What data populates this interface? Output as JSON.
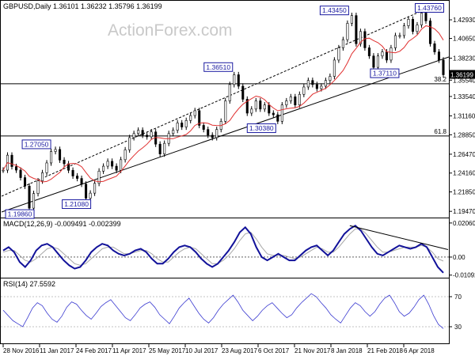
{
  "chart_data": {
    "type": "candlestick",
    "symbol_header": "GBPUSD,Daily  1.36101 1.36232 1.35796 1.36199",
    "watermark": "ActionForex.com",
    "price_axis": {
      "ticks": [
        "1.42930",
        "1.40650",
        "1.38230",
        "1.35540",
        "1.33540",
        "1.31160",
        "1.28850",
        "1.26470",
        "1.24160",
        "1.21850",
        "1.19470"
      ],
      "tick_values": [
        1.4293,
        1.4065,
        1.3823,
        1.3554,
        1.3354,
        1.3116,
        1.2885,
        1.2647,
        1.2416,
        1.2185,
        1.1947
      ],
      "current_price_label": "1.36199",
      "current_price": 1.36199,
      "range": [
        1.19,
        1.44
      ]
    },
    "date_axis_labels": [
      "28 Nov 2016",
      "11 Jan 2017",
      "24 Feb 2017",
      "11 Apr 2017",
      "25 May 2017",
      "10 Jul 2017",
      "23 Aug 2017",
      "6 Oct 2017",
      "21 Nov 2017",
      "8 Jan 2018",
      "21 Feb 2018",
      "6 Apr 2018"
    ],
    "price_series": [
      1.2452,
      1.2635,
      1.2495,
      1.2452,
      1.236,
      1.2256,
      1.1986,
      1.2165,
      1.232,
      1.242,
      1.254,
      1.268,
      1.2705,
      1.2575,
      1.253,
      1.245,
      1.238,
      1.235,
      1.228,
      1.2108,
      1.217,
      1.229,
      1.244,
      1.25,
      1.256,
      1.25,
      1.245,
      1.258,
      1.27,
      1.285,
      1.29,
      1.294,
      1.288,
      1.286,
      1.292,
      1.277,
      1.265,
      1.278,
      1.29,
      1.294,
      1.303,
      1.298,
      1.306,
      1.312,
      1.318,
      1.3,
      1.295,
      1.288,
      1.285,
      1.295,
      1.305,
      1.33,
      1.35,
      1.362,
      1.348,
      1.332,
      1.315,
      1.32,
      1.33,
      1.32,
      1.325,
      1.315,
      1.313,
      1.305,
      1.325,
      1.33,
      1.335,
      1.325,
      1.338,
      1.347,
      1.355,
      1.35,
      1.345,
      1.348,
      1.355,
      1.36,
      1.38,
      1.395,
      1.405,
      1.425,
      1.4345,
      1.4,
      1.415,
      1.395,
      1.385,
      1.3711,
      1.385,
      1.39,
      1.38,
      1.395,
      1.41,
      1.41,
      1.422,
      1.43,
      1.415,
      1.423,
      1.4376,
      1.428,
      1.4,
      1.39,
      1.38,
      1.362
    ],
    "annotations": [
      {
        "label": "1.43760",
        "value": 1.4376
      },
      {
        "label": "1.43450",
        "value": 1.4345
      },
      {
        "label": "1.37110",
        "value": 1.3711
      },
      {
        "label": "1.36510",
        "value": 1.3651
      },
      {
        "label": "1.30380",
        "value": 1.3038
      },
      {
        "label": "1.27050",
        "value": 1.2705
      },
      {
        "label": "1.21080",
        "value": 1.2108
      },
      {
        "label": "1.19860",
        "value": 1.1986
      }
    ],
    "fib_levels": [
      {
        "label": "38.2",
        "value": 1.351
      },
      {
        "label": "61.8",
        "value": 1.287
      }
    ],
    "macd": {
      "label": "MACD(12,26,9) -0.009491 -0.002399",
      "ticks": [
        "0.020602",
        "0.00",
        "-0.010923"
      ],
      "tick_values": [
        0.0206,
        0.0,
        -0.0109
      ],
      "range": [
        -0.0115,
        0.0215
      ],
      "macd_values": [
        0.004,
        0.006,
        0.003,
        -0.003,
        -0.006,
        -0.002,
        0.004,
        0.007,
        0.008,
        0.006,
        0.002,
        -0.002,
        -0.005,
        -0.007,
        -0.006,
        -0.002,
        0.003,
        0.006,
        0.008,
        0.007,
        0.004,
        0.002,
        0.001,
        0.002,
        0.004,
        0.005,
        0.003,
        -0.001,
        -0.004,
        -0.004,
        -0.001,
        0.003,
        0.006,
        0.007,
        0.006,
        0.003,
        -0.001,
        -0.004,
        -0.006,
        -0.004,
        0.0,
        0.004,
        0.009,
        0.015,
        0.018,
        0.014,
        0.006,
        0.0,
        -0.002,
        0.0,
        0.002,
        0.0,
        -0.002,
        -0.002,
        0.001,
        0.004,
        0.006,
        0.007,
        0.004,
        0.001,
        0.004,
        0.009,
        0.014,
        0.017,
        0.019,
        0.016,
        0.011,
        0.006,
        0.002,
        0.001,
        0.003,
        0.005,
        0.007,
        0.006,
        0.005,
        0.006,
        0.008,
        0.006,
        0.0,
        -0.006,
        -0.0095
      ],
      "signal_values": [
        0.003,
        0.004,
        0.004,
        0.001,
        -0.002,
        -0.003,
        -0.001,
        0.002,
        0.005,
        0.006,
        0.005,
        0.002,
        -0.001,
        -0.004,
        -0.005,
        -0.004,
        -0.001,
        0.002,
        0.005,
        0.006,
        0.006,
        0.004,
        0.002,
        0.002,
        0.003,
        0.004,
        0.004,
        0.002,
        -0.001,
        -0.003,
        -0.003,
        0.0,
        0.003,
        0.005,
        0.006,
        0.005,
        0.002,
        -0.001,
        -0.004,
        -0.004,
        -0.002,
        0.001,
        0.005,
        0.01,
        0.014,
        0.015,
        0.011,
        0.006,
        0.002,
        0.001,
        0.001,
        0.001,
        0.0,
        -0.001,
        0.0,
        0.002,
        0.004,
        0.006,
        0.005,
        0.003,
        0.003,
        0.006,
        0.01,
        0.014,
        0.017,
        0.017,
        0.014,
        0.01,
        0.006,
        0.003,
        0.003,
        0.004,
        0.005,
        0.006,
        0.006,
        0.006,
        0.007,
        0.006,
        0.003,
        -0.001,
        -0.0024
      ]
    },
    "rsi": {
      "label": "RSI(14) 27.5592",
      "ticks": [
        "70",
        "30"
      ],
      "tick_values": [
        70,
        30
      ],
      "range": [
        10,
        90
      ],
      "values": [
        52,
        45,
        38,
        34,
        30,
        42,
        55,
        62,
        58,
        48,
        40,
        36,
        44,
        56,
        63,
        60,
        52,
        45,
        40,
        48,
        57,
        62,
        66,
        58,
        50,
        42,
        38,
        46,
        55,
        60,
        63,
        56,
        46,
        40,
        34,
        44,
        55,
        62,
        68,
        58,
        48,
        40,
        35,
        42,
        52,
        60,
        66,
        72,
        63,
        52,
        45,
        38,
        44,
        52,
        58,
        62,
        55,
        48,
        42,
        46,
        55,
        62,
        68,
        74,
        70,
        62,
        55,
        46,
        40,
        35,
        45,
        55,
        62,
        58,
        50,
        44,
        50,
        60,
        68,
        72,
        62,
        50,
        44,
        48,
        56,
        66,
        72,
        60,
        45,
        33,
        27.6
      ]
    }
  }
}
